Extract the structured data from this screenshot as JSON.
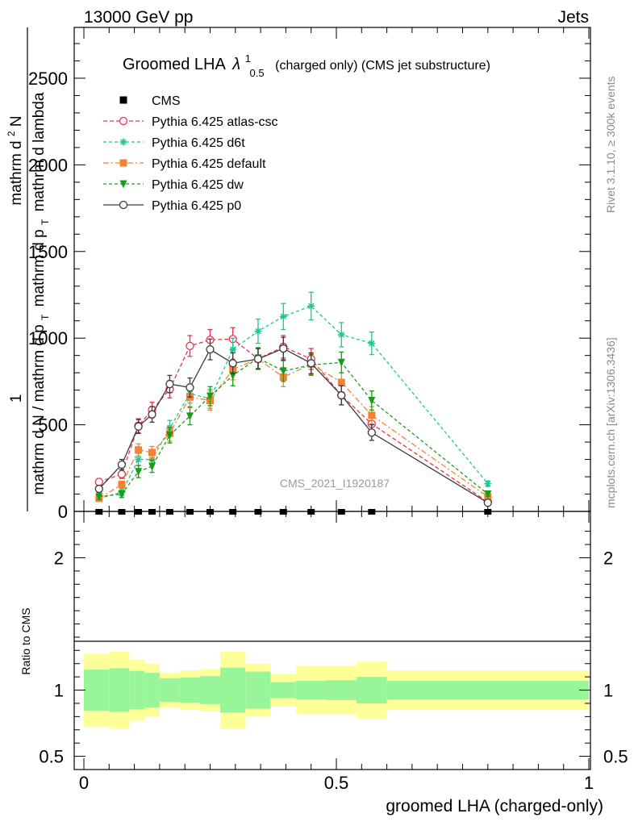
{
  "header": {
    "left_label": "13000 GeV pp",
    "right_label": "Jets"
  },
  "side_labels": {
    "rivet": "Rivet 3.1.10, ≥ 300k events",
    "mcplots": "mcplots.cern.ch [arXiv:1306.3436]"
  },
  "watermark": "CMS_2021_I1920187",
  "main_title": {
    "prefix": "Groomed LHA",
    "lambda": "λ",
    "sup": "1",
    "sub": "0.5",
    "suffix": "(charged only) (CMS jet substructure)"
  },
  "ylabel_upper": {
    "frac_one": "1",
    "den": "mathrm d N / mathrm d p",
    "den_sub": "T",
    "num": "mathrm d",
    "num_sup": "2",
    "num_rest": "N",
    "num_den": "mathrm d p",
    "num_den_sub": "T",
    "num_den_rest": "mathrm d lambda"
  },
  "ratio_ylabel": "Ratio to CMS",
  "xlabel": "groomed LHA (charged-only)",
  "legend": [
    {
      "key": "cms",
      "label": "CMS"
    },
    {
      "key": "atlas",
      "label": "Pythia 6.425 atlas-csc"
    },
    {
      "key": "d6t",
      "label": "Pythia 6.425 d6t"
    },
    {
      "key": "default",
      "label": "Pythia 6.425 default"
    },
    {
      "key": "dw",
      "label": "Pythia 6.425 dw"
    },
    {
      "key": "p0",
      "label": "Pythia 6.425 p0"
    }
  ],
  "colors": {
    "atlas": "#e8334f",
    "d6t": "#1ec78c",
    "default": "#f58233",
    "dw": "#1a9c1a",
    "p0": "#3a3a3a",
    "band_inner": "#99f599",
    "band_outer": "#ffff99"
  },
  "chart_data": {
    "type": "line",
    "xlim": [
      0,
      1
    ],
    "ylim": [
      0,
      2700
    ],
    "x_ticks": [
      {
        "value": 0,
        "label": "0"
      },
      {
        "value": 0.5,
        "label": "0.5"
      },
      {
        "value": 1,
        "label": "1"
      }
    ],
    "y_ticks": [
      {
        "value": 0,
        "label": "0"
      },
      {
        "value": 500,
        "label": "500"
      },
      {
        "value": 1000,
        "label": "1000"
      },
      {
        "value": 1500,
        "label": "1500"
      },
      {
        "value": 2000,
        "label": "2000"
      },
      {
        "value": 2500,
        "label": "2500"
      }
    ],
    "x": [
      0.03,
      0.075,
      0.108,
      0.135,
      0.17,
      0.21,
      0.25,
      0.295,
      0.345,
      0.395,
      0.45,
      0.51,
      0.57,
      0.8
    ],
    "cms": [
      0,
      0,
      0,
      0,
      0,
      0,
      0,
      0,
      0,
      0,
      0,
      0,
      0,
      0
    ],
    "series": [
      {
        "key": "atlas",
        "name": "Pythia 6.425 atlas-csc",
        "marker": "open-circle",
        "dash": "5,3",
        "values": [
          170,
          215,
          495,
          585,
          705,
          955,
          990,
          995,
          880,
          950,
          880,
          670,
          505,
          55
        ],
        "errors": [
          20,
          25,
          40,
          45,
          50,
          60,
          60,
          65,
          60,
          65,
          60,
          55,
          45,
          10
        ]
      },
      {
        "key": "d6t",
        "name": "Pythia 6.425 d6t",
        "marker": "star",
        "dash": "4,3",
        "values": [
          75,
          110,
          300,
          300,
          480,
          680,
          650,
          935,
          1040,
          1125,
          1185,
          1020,
          970,
          160
        ],
        "errors": [
          15,
          20,
          35,
          35,
          45,
          55,
          55,
          65,
          70,
          75,
          80,
          70,
          65,
          15
        ]
      },
      {
        "key": "default",
        "name": "Pythia 6.425 default",
        "marker": "square",
        "dash": "7,3,2,3",
        "values": [
          75,
          155,
          355,
          340,
          450,
          660,
          640,
          820,
          880,
          775,
          850,
          745,
          555,
          85
        ],
        "errors": [
          15,
          20,
          35,
          35,
          45,
          55,
          55,
          60,
          60,
          55,
          60,
          55,
          50,
          12
        ]
      },
      {
        "key": "dw",
        "name": "Pythia 6.425 dw",
        "marker": "down-triangle",
        "dash": "4,3",
        "values": [
          85,
          100,
          230,
          260,
          440,
          550,
          665,
          785,
          885,
          810,
          845,
          860,
          640,
          100
        ],
        "errors": [
          15,
          20,
          35,
          35,
          45,
          50,
          55,
          60,
          60,
          60,
          60,
          60,
          55,
          12
        ]
      },
      {
        "key": "p0",
        "name": "Pythia 6.425 p0",
        "marker": "open-circle",
        "dash": "",
        "values": [
          130,
          270,
          490,
          560,
          735,
          715,
          935,
          855,
          880,
          940,
          855,
          670,
          455,
          50
        ],
        "errors": [
          20,
          30,
          40,
          45,
          50,
          55,
          60,
          60,
          60,
          65,
          60,
          55,
          45,
          10
        ]
      }
    ],
    "ratio": {
      "ylim": [
        0.4,
        2.35
      ],
      "y_ticks": [
        {
          "value": 0.5,
          "label": "0.5"
        },
        {
          "value": 1,
          "label": "1"
        },
        {
          "value": 2,
          "label": "2"
        }
      ],
      "bin_edges": [
        0,
        0.05,
        0.09,
        0.12,
        0.15,
        0.19,
        0.23,
        0.27,
        0.32,
        0.37,
        0.42,
        0.48,
        0.54,
        0.6,
        1.0
      ],
      "inner": [
        0.155,
        0.165,
        0.145,
        0.13,
        0.09,
        0.095,
        0.105,
        0.17,
        0.14,
        0.06,
        0.07,
        0.075,
        0.1,
        0.07
      ],
      "outer": [
        0.275,
        0.29,
        0.23,
        0.2,
        0.13,
        0.15,
        0.16,
        0.29,
        0.2,
        0.12,
        0.18,
        0.18,
        0.215,
        0.15
      ]
    }
  }
}
